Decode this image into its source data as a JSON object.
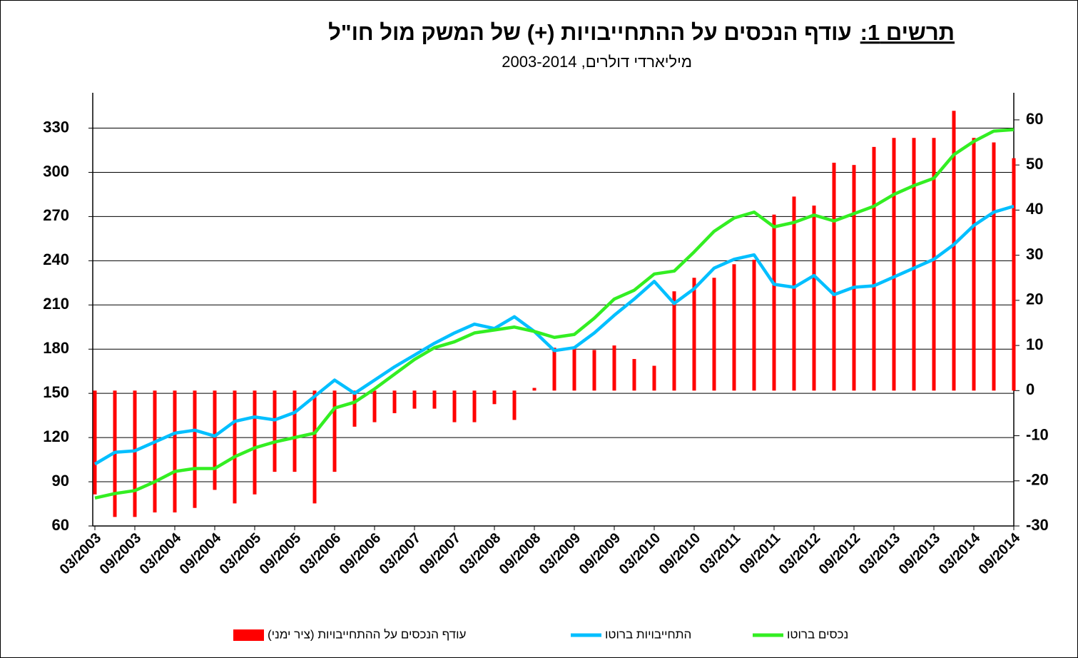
{
  "chart_data": {
    "type": "combo",
    "title_prefix": "תרשים 1:",
    "title": "עודף הנכסים על ההתחייבויות (+) של המשק מול חו\"ל",
    "subtitle": "מיליארדי דולרים, 2003-2014",
    "categories": [
      "03/2003",
      null,
      "09/2003",
      null,
      "03/2004",
      null,
      "09/2004",
      null,
      "03/2005",
      null,
      "09/2005",
      null,
      "03/2006",
      null,
      "09/2006",
      null,
      "03/2007",
      null,
      "09/2007",
      null,
      "03/2008",
      null,
      "09/2008",
      null,
      "03/2009",
      null,
      "09/2009",
      null,
      "03/2010",
      null,
      "09/2010",
      null,
      "03/2011",
      null,
      "09/2011",
      null,
      "03/2012",
      null,
      "09/2012",
      null,
      "03/2013",
      null,
      "09/2013",
      null,
      "03/2014",
      null,
      "09/2014"
    ],
    "series": [
      {
        "name": "עודף הנכסים על ההתחייבויות (ציר ימני)",
        "type": "bar",
        "axis": "y2",
        "color": "#ff0000",
        "values": [
          -23,
          -28,
          -28,
          -27,
          -27,
          -26,
          -22,
          -25,
          -23,
          -18,
          -18,
          -25,
          -18,
          -8,
          -7,
          -5,
          -4,
          -4,
          -7,
          -7,
          -3,
          -6.5,
          0.6,
          9.5,
          9.5,
          9,
          10,
          7,
          5.5,
          22,
          25,
          25,
          28,
          29,
          39,
          43,
          41,
          50.5,
          50,
          54,
          56,
          56,
          56,
          62,
          56,
          55,
          51.5
        ]
      },
      {
        "name": "התחייבויות ברוטו",
        "type": "line",
        "color": "#00bfff",
        "values": [
          102,
          110,
          111,
          117,
          123,
          125,
          121,
          131,
          134,
          132,
          137,
          148,
          159,
          150,
          159,
          168,
          176,
          184,
          191,
          197,
          194,
          202,
          192,
          179,
          181,
          191,
          203,
          214,
          226,
          211,
          221,
          235,
          241,
          244,
          224,
          222,
          230,
          217,
          222,
          223,
          229,
          235,
          241,
          251,
          264,
          273,
          277
        ]
      },
      {
        "name": "נכסים ברוטו",
        "type": "line",
        "color": "#33ee22",
        "values": [
          79,
          82,
          84,
          90,
          97,
          99,
          99,
          107,
          113,
          117,
          120,
          123,
          140,
          144,
          153,
          163,
          173,
          181,
          185,
          191,
          193,
          195,
          192,
          188,
          190,
          201,
          214,
          220,
          231,
          233,
          246,
          260,
          269,
          273,
          263,
          266,
          271,
          267,
          272,
          277,
          285,
          291,
          296,
          312,
          321,
          328,
          329
        ]
      }
    ],
    "ylim": [
      60,
      354
    ],
    "yticks": [
      60,
      90,
      120,
      150,
      180,
      210,
      240,
      270,
      300,
      330
    ],
    "y2lim": [
      -30,
      66
    ],
    "y2ticks": [
      -30,
      -20,
      -10,
      0,
      10,
      20,
      30,
      40,
      50,
      60
    ],
    "grid": true
  }
}
